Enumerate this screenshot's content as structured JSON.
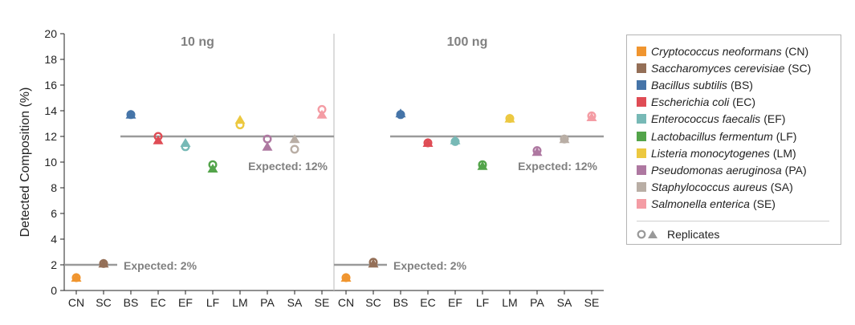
{
  "chart_data": {
    "type": "scatter",
    "ylabel": "Detected Composition (%)",
    "ylim": [
      0,
      20
    ],
    "yticks": [
      "0",
      "2",
      "4",
      "6",
      "8",
      "10",
      "12",
      "14",
      "16",
      "18",
      "20"
    ],
    "categories": [
      "CN",
      "SC",
      "BS",
      "EC",
      "EF",
      "LF",
      "LM",
      "PA",
      "SA",
      "SE"
    ],
    "marker_note": "circle = replicate 1, triangle = replicate 2",
    "panels": [
      {
        "title": "10 ng",
        "expected_lines": [
          {
            "label": "Expected: 2%",
            "value": 2,
            "from": "CN",
            "to": "SC"
          },
          {
            "label": "Expected: 12%",
            "value": 12,
            "from": "BS",
            "to": "SE"
          }
        ],
        "replicate_circle": [
          1.0,
          2.1,
          13.7,
          12.0,
          11.2,
          9.8,
          12.9,
          11.8,
          11.0,
          14.1
        ],
        "replicate_triangle": [
          1.0,
          2.1,
          13.7,
          11.7,
          11.5,
          9.5,
          13.3,
          11.2,
          11.8,
          13.7
        ]
      },
      {
        "title": "100 ng",
        "expected_lines": [
          {
            "label": "Expected: 2%",
            "value": 2,
            "from": "CN",
            "to": "SC"
          },
          {
            "label": "Expected: 12%",
            "value": 12,
            "from": "BS",
            "to": "SE"
          }
        ],
        "replicate_circle": [
          1.0,
          2.2,
          13.7,
          11.5,
          11.6,
          9.8,
          13.4,
          10.9,
          11.8,
          13.6
        ],
        "replicate_triangle": [
          1.0,
          2.1,
          13.8,
          11.5,
          11.7,
          9.7,
          13.4,
          10.8,
          11.8,
          13.5
        ]
      }
    ],
    "legend_placement": "right",
    "legend": [
      {
        "name": "Cryptococcus neoformans",
        "abbr": "(CN)",
        "color": "#f0952f"
      },
      {
        "name": "Saccharomyces cerevisiae",
        "abbr": "(SC)",
        "color": "#946f57"
      },
      {
        "name": "Bacillus subtilis",
        "abbr": "(BS)",
        "color": "#4574a8"
      },
      {
        "name": "Escherichia coli",
        "abbr": "(EC)",
        "color": "#df4c55"
      },
      {
        "name": "Enterococcus faecalis",
        "abbr": "(EF)",
        "color": "#77b9b6"
      },
      {
        "name": "Lactobacillus fermentum",
        "abbr": "(LF)",
        "color": "#53a44a"
      },
      {
        "name": "Listeria monocytogenes",
        "abbr": "(LM)",
        "color": "#ecc840"
      },
      {
        "name": "Pseudomonas aeruginosa",
        "abbr": "(PA)",
        "color": "#ae78a1"
      },
      {
        "name": "Staphylococcus aureus",
        "abbr": "(SA)",
        "color": "#b9aea5"
      },
      {
        "name": "Salmonella enterica",
        "abbr": "(SE)",
        "color": "#f49ca4"
      }
    ],
    "replicates_label": "Replicates",
    "grid": false
  }
}
